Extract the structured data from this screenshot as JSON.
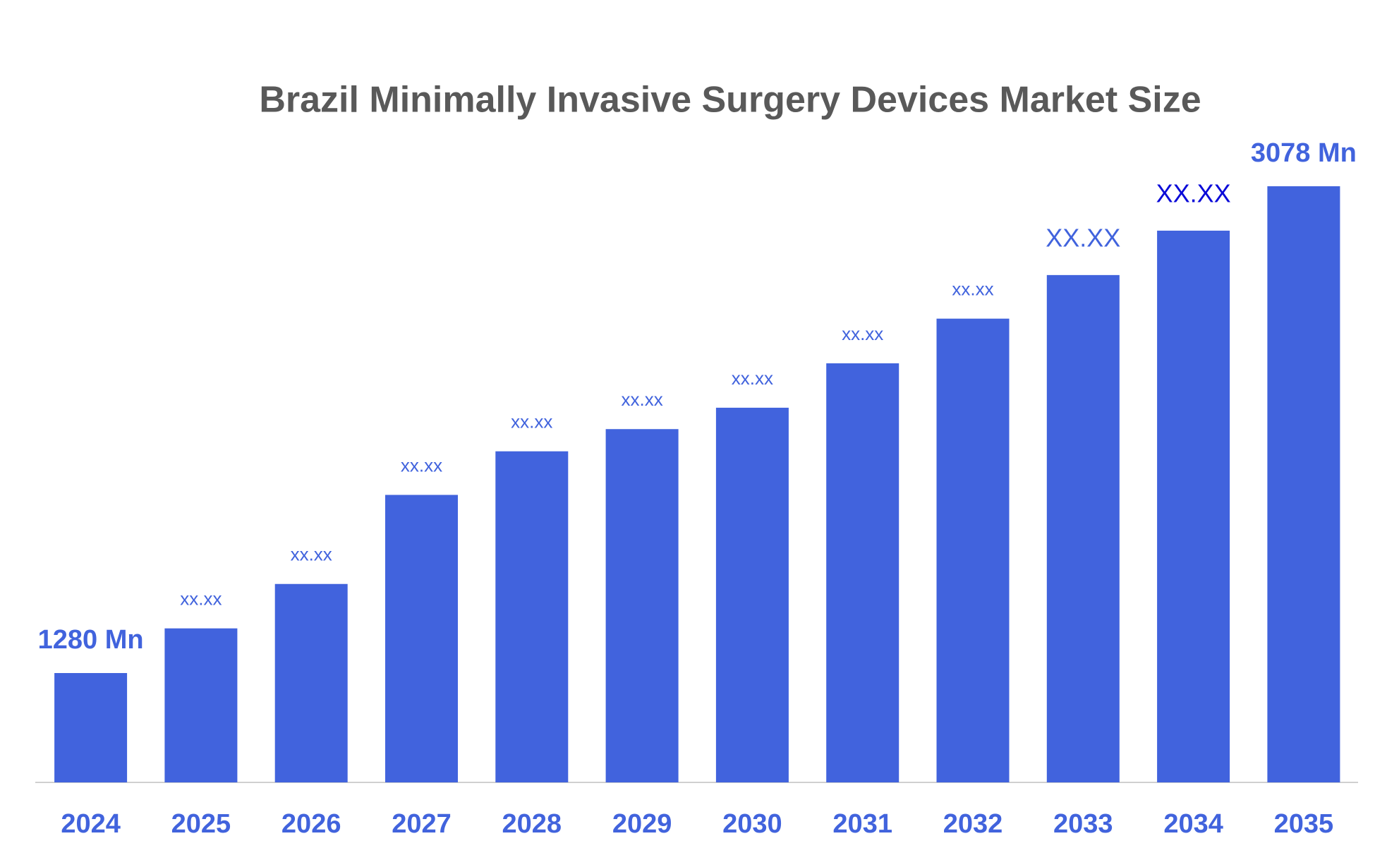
{
  "chart_data": {
    "type": "bar",
    "title": "Brazil Minimally Invasive Surgery Devices Market Size",
    "categories": [
      "2024",
      "2025",
      "2026",
      "2027",
      "2028",
      "2029",
      "2030",
      "2031",
      "2032",
      "2033",
      "2034",
      "2035"
    ],
    "values": [
      1280,
      1445,
      1609,
      1938,
      2099,
      2181,
      2260,
      2424,
      2589,
      2750,
      2914,
      3078
    ],
    "value_labels": [
      "1280 Mn",
      "xx.xx",
      "xx.xx",
      "xx.xx",
      "xx.xx",
      "xx.xx",
      "xx.xx",
      "xx.xx",
      "xx.xx",
      "XX.XX",
      "XX.XX",
      "3078 Mn"
    ],
    "color": "#4163dd"
  }
}
